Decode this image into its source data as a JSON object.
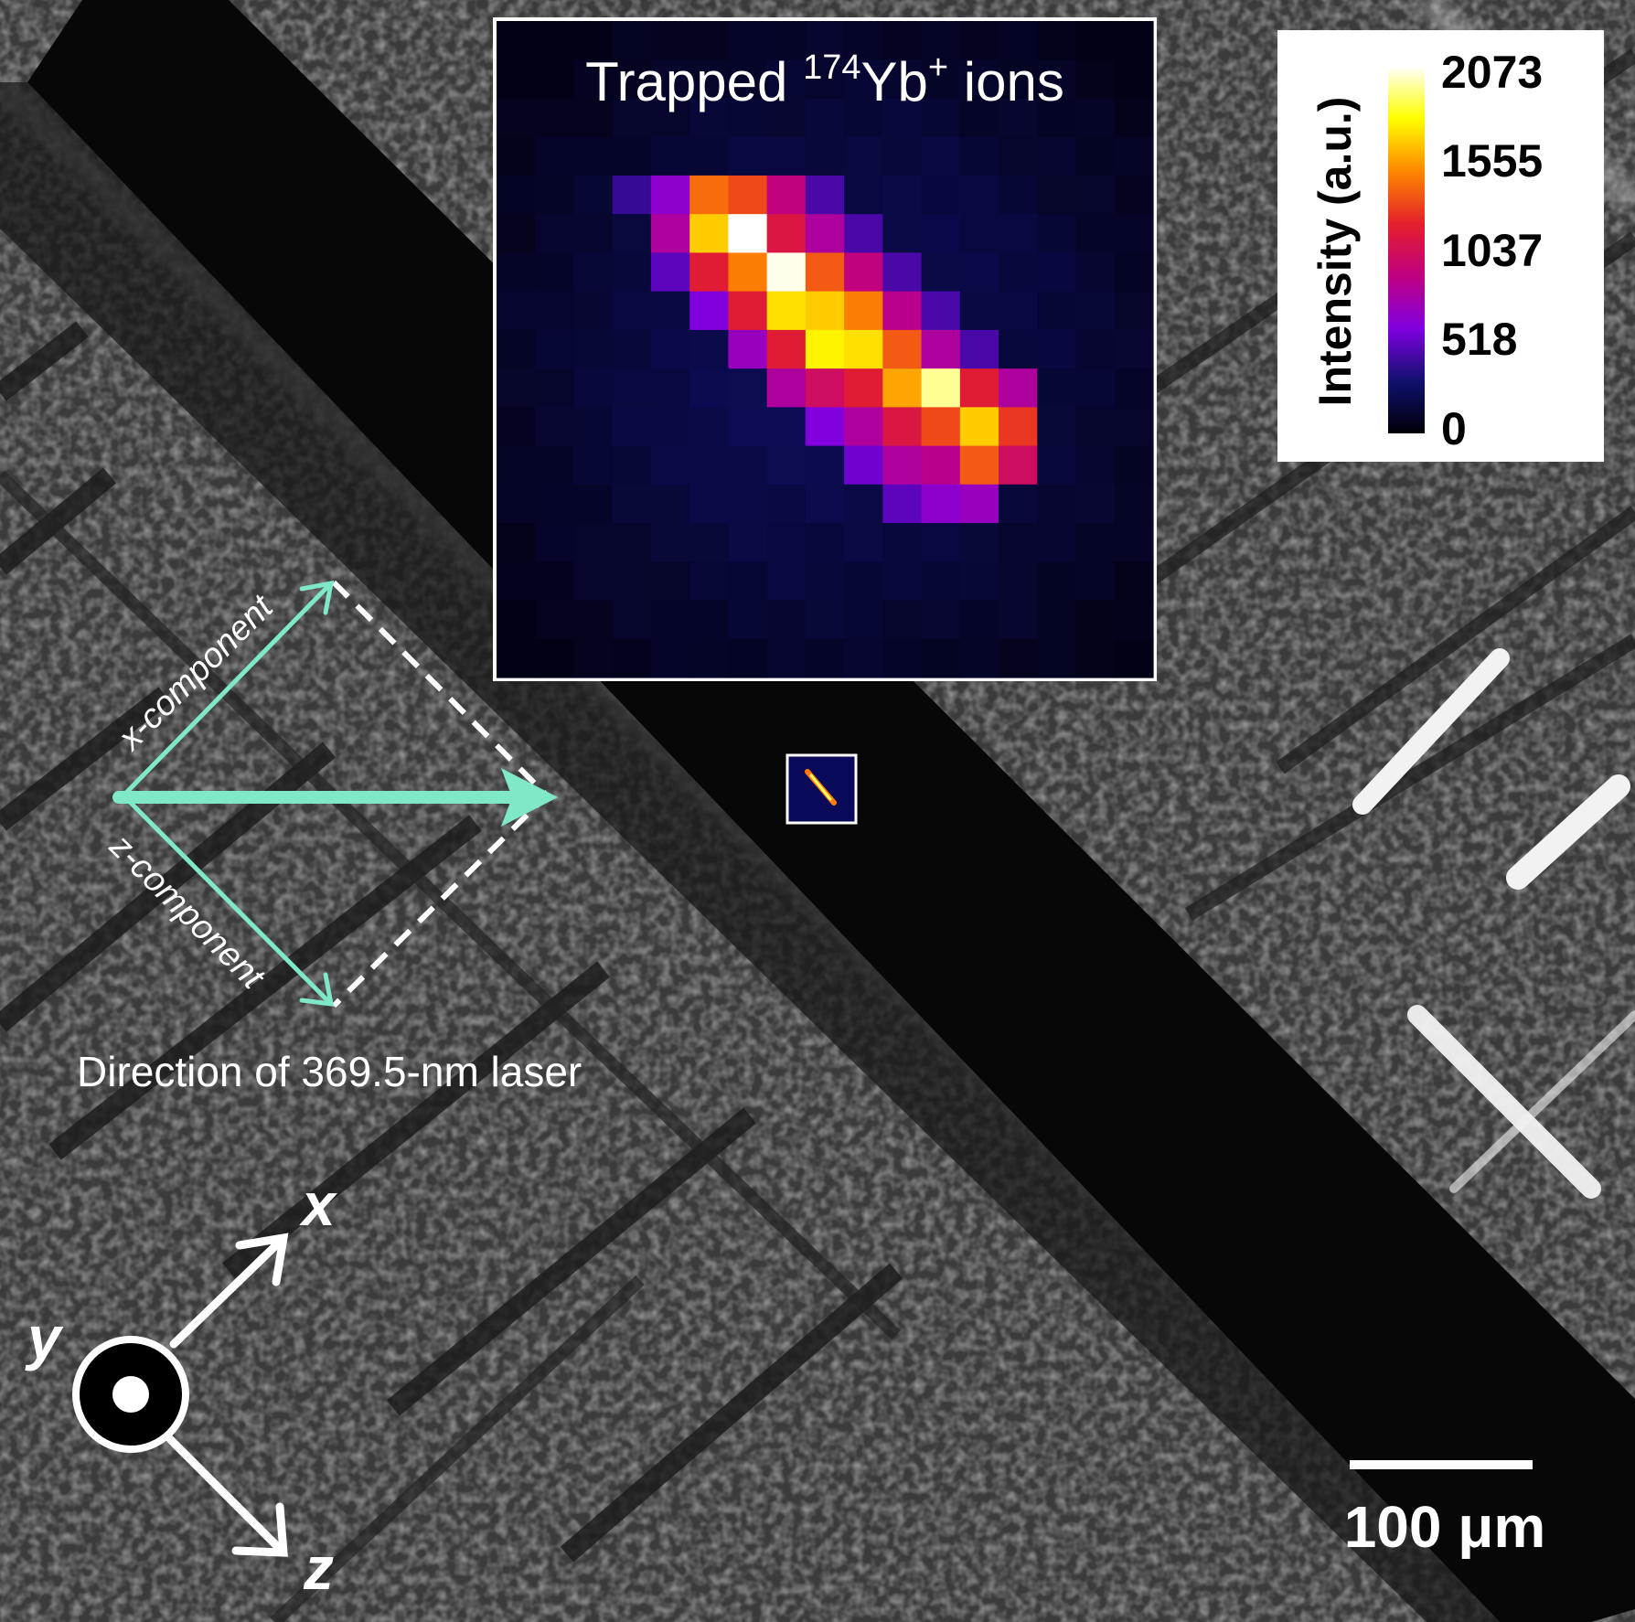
{
  "inset": {
    "title_prefix": "Trapped ",
    "title_isotope": "174",
    "title_element": "Yb",
    "title_charge": "+",
    "title_suffix": " ions"
  },
  "colorbar": {
    "label": "Intensity (a.u.)",
    "ticks": [
      "2073",
      "1555",
      "1037",
      "518",
      "0"
    ],
    "colors": [
      "#ffffff",
      "#ffff00",
      "#ff8800",
      "#e4202a",
      "#c00080",
      "#8000e0",
      "#10106e",
      "#000008"
    ]
  },
  "laser": {
    "x_label": "x-component",
    "z_label": "z-component",
    "caption": "Direction of 369.5-nm laser",
    "arrow_color": "#7ee8c8"
  },
  "axes": {
    "x": "x",
    "y": "y",
    "z": "z"
  },
  "scalebar": {
    "label": "100 μm"
  },
  "heatmap": {
    "type": "heatmap",
    "vmin": 0,
    "vmax": 2073,
    "rows": 17,
    "cols": 17,
    "cells": [
      [
        4,
        5,
        1400
      ],
      [
        4,
        6,
        1300
      ],
      [
        4,
        7,
        900
      ],
      [
        4,
        3,
        400
      ],
      [
        4,
        4,
        650
      ],
      [
        4,
        8,
        450
      ],
      [
        5,
        5,
        1650
      ],
      [
        5,
        6,
        2073
      ],
      [
        5,
        7,
        1100
      ],
      [
        5,
        8,
        800
      ],
      [
        5,
        4,
        800
      ],
      [
        5,
        9,
        450
      ],
      [
        6,
        5,
        1150
      ],
      [
        6,
        6,
        1450
      ],
      [
        6,
        7,
        2050
      ],
      [
        6,
        8,
        1350
      ],
      [
        6,
        9,
        900
      ],
      [
        6,
        4,
        500
      ],
      [
        6,
        10,
        450
      ],
      [
        7,
        6,
        1150
      ],
      [
        7,
        7,
        1700
      ],
      [
        7,
        8,
        1650
      ],
      [
        7,
        9,
        1450
      ],
      [
        7,
        10,
        850
      ],
      [
        7,
        5,
        600
      ],
      [
        7,
        11,
        450
      ],
      [
        8,
        7,
        1150
      ],
      [
        8,
        8,
        1750
      ],
      [
        8,
        9,
        1700
      ],
      [
        8,
        10,
        1350
      ],
      [
        8,
        11,
        800
      ],
      [
        8,
        6,
        700
      ],
      [
        8,
        12,
        450
      ],
      [
        9,
        8,
        1000
      ],
      [
        9,
        9,
        1150
      ],
      [
        9,
        10,
        1550
      ],
      [
        9,
        11,
        1950
      ],
      [
        9,
        12,
        1150
      ],
      [
        9,
        13,
        800
      ],
      [
        9,
        7,
        800
      ],
      [
        10,
        9,
        800
      ],
      [
        10,
        10,
        1100
      ],
      [
        10,
        11,
        1300
      ],
      [
        10,
        12,
        1650
      ],
      [
        10,
        13,
        1250
      ],
      [
        10,
        8,
        600
      ],
      [
        11,
        10,
        800
      ],
      [
        11,
        11,
        850
      ],
      [
        11,
        12,
        1350
      ],
      [
        11,
        13,
        1000
      ],
      [
        11,
        9,
        550
      ],
      [
        12,
        11,
        650
      ],
      [
        12,
        12,
        700
      ],
      [
        12,
        10,
        500
      ]
    ]
  }
}
